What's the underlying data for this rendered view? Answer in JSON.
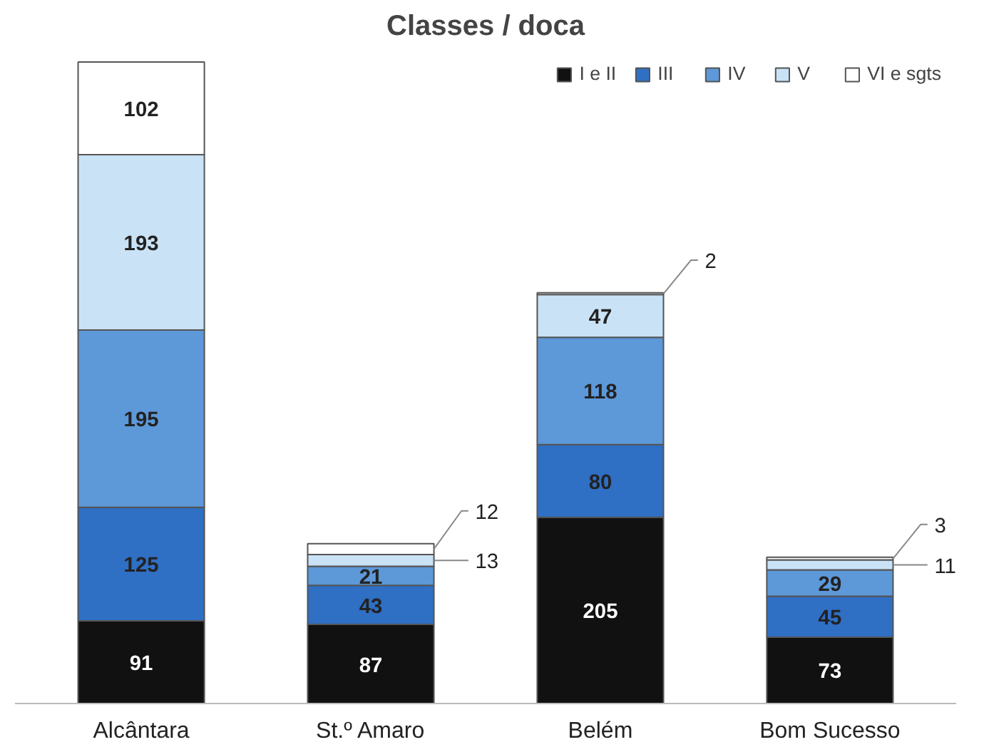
{
  "chart_data": {
    "type": "bar",
    "title": "Classes / doca",
    "stacked": true,
    "data_labels": true,
    "legend": "top right",
    "grid": false,
    "categories": [
      "Alcântara",
      "St.º Amaro",
      "Belém",
      "Bom Sucesso"
    ],
    "series": [
      {
        "name": "I e II",
        "color": "#111111",
        "values": [
          91,
          87,
          205,
          73
        ]
      },
      {
        "name": "III",
        "color": "#2f6fc4",
        "values": [
          125,
          43,
          80,
          45
        ]
      },
      {
        "name": "IV",
        "color": "#5d98d8",
        "values": [
          195,
          21,
          118,
          29
        ]
      },
      {
        "name": "V",
        "color": "#c9e2f6",
        "values": [
          193,
          13,
          47,
          11
        ]
      },
      {
        "name": "VI e sgts",
        "color": "#ffffff",
        "values": [
          102,
          12,
          2,
          3
        ]
      }
    ]
  }
}
